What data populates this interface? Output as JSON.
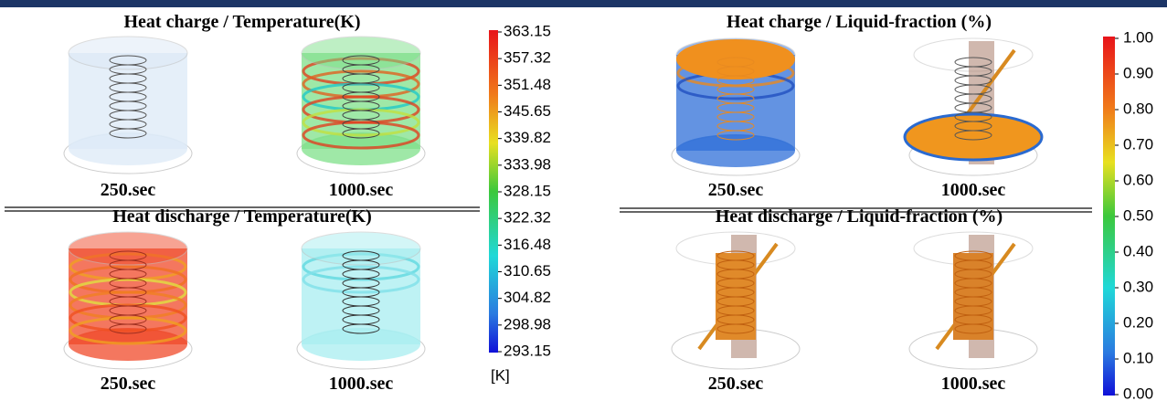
{
  "panels": [
    {
      "sections": [
        {
          "title": "Heat charge / Temperature(K)",
          "times": [
            "250.sec",
            "1000.sec"
          ]
        },
        {
          "title": "Heat discharge / Temperature(K)",
          "times": [
            "250.sec",
            "1000.sec"
          ]
        }
      ]
    },
    {
      "sections": [
        {
          "title": "Heat charge / Liquid-fraction (%)",
          "times": [
            "250.sec",
            "1000.sec"
          ]
        },
        {
          "title": "Heat discharge / Liquid-fraction (%)",
          "times": [
            "250.sec",
            "1000.sec"
          ]
        }
      ]
    }
  ],
  "colorbars": [
    {
      "ticks": [
        "363.15",
        "357.32",
        "351.48",
        "345.65",
        "339.82",
        "333.98",
        "328.15",
        "322.32",
        "316.48",
        "310.65",
        "304.82",
        "298.98",
        "293.15"
      ],
      "unit": "[K]"
    },
    {
      "ticks": [
        "1.00",
        "0.90",
        "0.80",
        "0.70",
        "0.60",
        "0.50",
        "0.40",
        "0.30",
        "0.20",
        "0.10",
        "0.00"
      ]
    }
  ]
}
